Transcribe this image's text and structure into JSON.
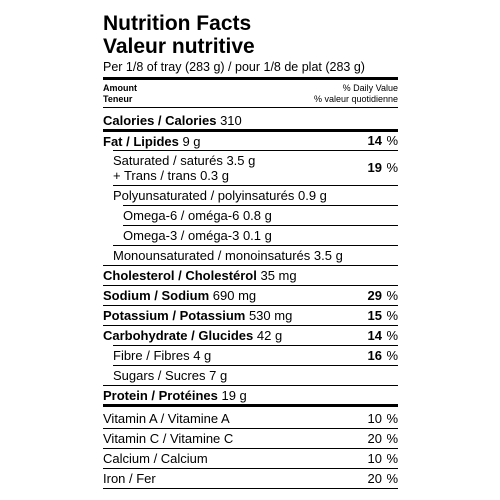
{
  "title": "Nutrition Facts",
  "title_fr": "Valeur nutritive",
  "serving": "Per 1/8 of tray (283 g) / pour 1/8 de plat (283 g)",
  "header": {
    "amount": "Amount",
    "amount_fr": "Teneur",
    "dv": "% Daily Value",
    "dv_fr": "% valeur quotidienne"
  },
  "rows": [
    {
      "label": "Calories / Calories",
      "amount": "310"
    },
    {
      "label": "Fat / Lipides",
      "amount": "9 g",
      "pct": "14",
      "sign": "%"
    },
    {
      "label": "Saturated / saturés",
      "amount": "3.5 g",
      "label2": "+ Trans / trans",
      "amount2": "0.3 g",
      "pct": "19",
      "sign": "%"
    },
    {
      "label": "Polyunsaturated / polyinsaturés",
      "amount": "0.9 g"
    },
    {
      "label": "Omega-6 / oméga-6",
      "amount": "0.8 g"
    },
    {
      "label": "Omega-3 / oméga-3",
      "amount": "0.1 g"
    },
    {
      "label": "Monounsaturated / monoinsaturés",
      "amount": "3.5 g"
    },
    {
      "label": "Cholesterol / Cholestérol",
      "amount": "35 mg"
    },
    {
      "label": "Sodium / Sodium",
      "amount": "690 mg",
      "pct": "29",
      "sign": "%"
    },
    {
      "label": "Potassium / Potassium",
      "amount": "530 mg",
      "pct": "15",
      "sign": "%"
    },
    {
      "label": "Carbohydrate / Glucides",
      "amount": "42 g",
      "pct": "14",
      "sign": "%"
    },
    {
      "label": "Fibre / Fibres",
      "amount": "4 g",
      "pct": "16",
      "sign": "%"
    },
    {
      "label": "Sugars / Sucres",
      "amount": "7 g"
    },
    {
      "label": "Protein / Protéines",
      "amount": "19 g"
    },
    {
      "label": "Vitamin A / Vitamine A",
      "pct": "10",
      "sign": "%"
    },
    {
      "label": "Vitamin C / Vitamine C",
      "pct": "20",
      "sign": "%"
    },
    {
      "label": "Calcium / Calcium",
      "pct": "10",
      "sign": "%"
    },
    {
      "label": "Iron / Fer",
      "pct": "20",
      "sign": "%"
    }
  ]
}
